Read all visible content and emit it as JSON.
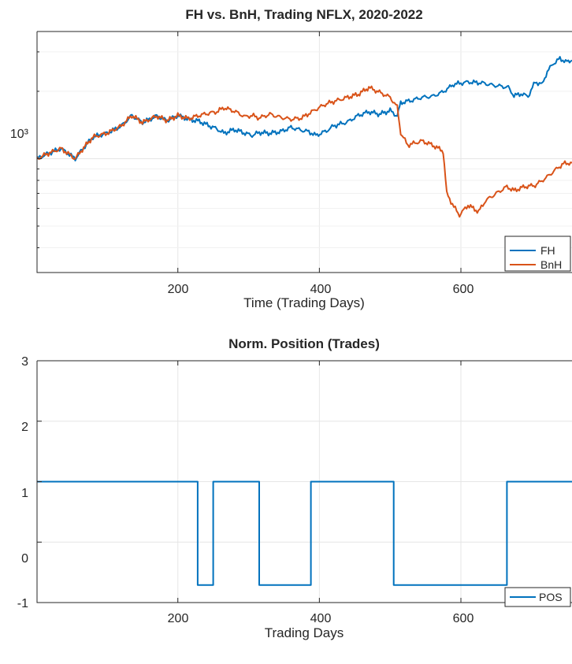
{
  "chart_data": [
    {
      "type": "line",
      "title": "FH vs. BnH, Trading NFLX, 2020-2022",
      "xlabel": "Time (Trading Days)",
      "ylabel": "",
      "y_scale": "log",
      "xlim": [
        1,
        757
      ],
      "ylim": [
        310,
        3700
      ],
      "x_ticks": [
        "200",
        "400",
        "600"
      ],
      "y_ticks": [
        "10³"
      ],
      "grid": true,
      "legend_position": "bottom-right",
      "series": [
        {
          "name": "FH",
          "color": "#0072BD",
          "points": [
            [
              1,
              1000
            ],
            [
              15,
              1050
            ],
            [
              35,
              1110
            ],
            [
              55,
              1000
            ],
            [
              65,
              1100
            ],
            [
              80,
              1250
            ],
            [
              100,
              1300
            ],
            [
              120,
              1400
            ],
            [
              135,
              1560
            ],
            [
              150,
              1450
            ],
            [
              170,
              1550
            ],
            [
              185,
              1480
            ],
            [
              200,
              1560
            ],
            [
              215,
              1500
            ],
            [
              230,
              1470
            ],
            [
              245,
              1400
            ],
            [
              255,
              1360
            ],
            [
              265,
              1300
            ],
            [
              280,
              1350
            ],
            [
              295,
              1300
            ],
            [
              305,
              1270
            ],
            [
              315,
              1310
            ],
            [
              330,
              1300
            ],
            [
              345,
              1320
            ],
            [
              360,
              1380
            ],
            [
              375,
              1340
            ],
            [
              385,
              1320
            ],
            [
              395,
              1270
            ],
            [
              410,
              1330
            ],
            [
              420,
              1400
            ],
            [
              440,
              1460
            ],
            [
              455,
              1560
            ],
            [
              470,
              1620
            ],
            [
              485,
              1580
            ],
            [
              500,
              1640
            ],
            [
              510,
              1550
            ],
            [
              515,
              1780
            ],
            [
              530,
              1820
            ],
            [
              545,
              1880
            ],
            [
              560,
              1900
            ],
            [
              575,
              1990
            ],
            [
              590,
              2150
            ],
            [
              610,
              2200
            ],
            [
              630,
              2180
            ],
            [
              645,
              2130
            ],
            [
              660,
              2100
            ],
            [
              667,
              2080
            ],
            [
              675,
              1910
            ],
            [
              685,
              1950
            ],
            [
              695,
              1900
            ],
            [
              705,
              2200
            ],
            [
              715,
              2150
            ],
            [
              722,
              2450
            ],
            [
              730,
              2650
            ],
            [
              740,
              2800
            ],
            [
              750,
              2700
            ],
            [
              757,
              2750
            ]
          ]
        },
        {
          "name": "BnH",
          "color": "#D95319",
          "points": [
            [
              1,
              1000
            ],
            [
              15,
              1050
            ],
            [
              35,
              1110
            ],
            [
              55,
              1000
            ],
            [
              65,
              1100
            ],
            [
              80,
              1250
            ],
            [
              100,
              1300
            ],
            [
              120,
              1400
            ],
            [
              135,
              1560
            ],
            [
              150,
              1450
            ],
            [
              170,
              1550
            ],
            [
              185,
              1480
            ],
            [
              200,
              1560
            ],
            [
              215,
              1510
            ],
            [
              230,
              1560
            ],
            [
              245,
              1600
            ],
            [
              255,
              1620
            ],
            [
              265,
              1690
            ],
            [
              280,
              1630
            ],
            [
              295,
              1540
            ],
            [
              305,
              1560
            ],
            [
              315,
              1520
            ],
            [
              330,
              1580
            ],
            [
              345,
              1530
            ],
            [
              360,
              1500
            ],
            [
              375,
              1520
            ],
            [
              385,
              1590
            ],
            [
              395,
              1660
            ],
            [
              410,
              1760
            ],
            [
              420,
              1800
            ],
            [
              440,
              1880
            ],
            [
              455,
              1940
            ],
            [
              470,
              2080
            ],
            [
              485,
              1980
            ],
            [
              500,
              1880
            ],
            [
              510,
              1700
            ],
            [
              515,
              1300
            ],
            [
              525,
              1150
            ],
            [
              545,
              1200
            ],
            [
              560,
              1150
            ],
            [
              575,
              1080
            ],
            [
              580,
              700
            ],
            [
              590,
              610
            ],
            [
              598,
              560
            ],
            [
              610,
              620
            ],
            [
              625,
              580
            ],
            [
              635,
              650
            ],
            [
              650,
              700
            ],
            [
              665,
              750
            ],
            [
              675,
              720
            ],
            [
              690,
              750
            ],
            [
              705,
              760
            ],
            [
              720,
              820
            ],
            [
              735,
              900
            ],
            [
              745,
              950
            ],
            [
              757,
              960
            ]
          ]
        }
      ]
    },
    {
      "type": "line",
      "title": "Norm. Position (Trades)",
      "xlabel": "Trading Days",
      "ylabel": "",
      "xlim": [
        1,
        757
      ],
      "ylim": [
        -1,
        3
      ],
      "x_ticks": [
        "200",
        "400",
        "600"
      ],
      "y_ticks": [
        "3",
        "2",
        "1",
        "0",
        "-1"
      ],
      "grid": true,
      "legend_position": "bottom-right",
      "series": [
        {
          "name": "POS",
          "color": "#0072BD",
          "points": [
            [
              1,
              1
            ],
            [
              228,
              1
            ],
            [
              228,
              -0.71
            ],
            [
              250,
              -0.71
            ],
            [
              250,
              1
            ],
            [
              315,
              1
            ],
            [
              315,
              -0.71
            ],
            [
              388,
              -0.71
            ],
            [
              388,
              1
            ],
            [
              505,
              1
            ],
            [
              505,
              -0.71
            ],
            [
              665,
              -0.71
            ],
            [
              665,
              1
            ],
            [
              757,
              1
            ]
          ]
        }
      ]
    }
  ]
}
